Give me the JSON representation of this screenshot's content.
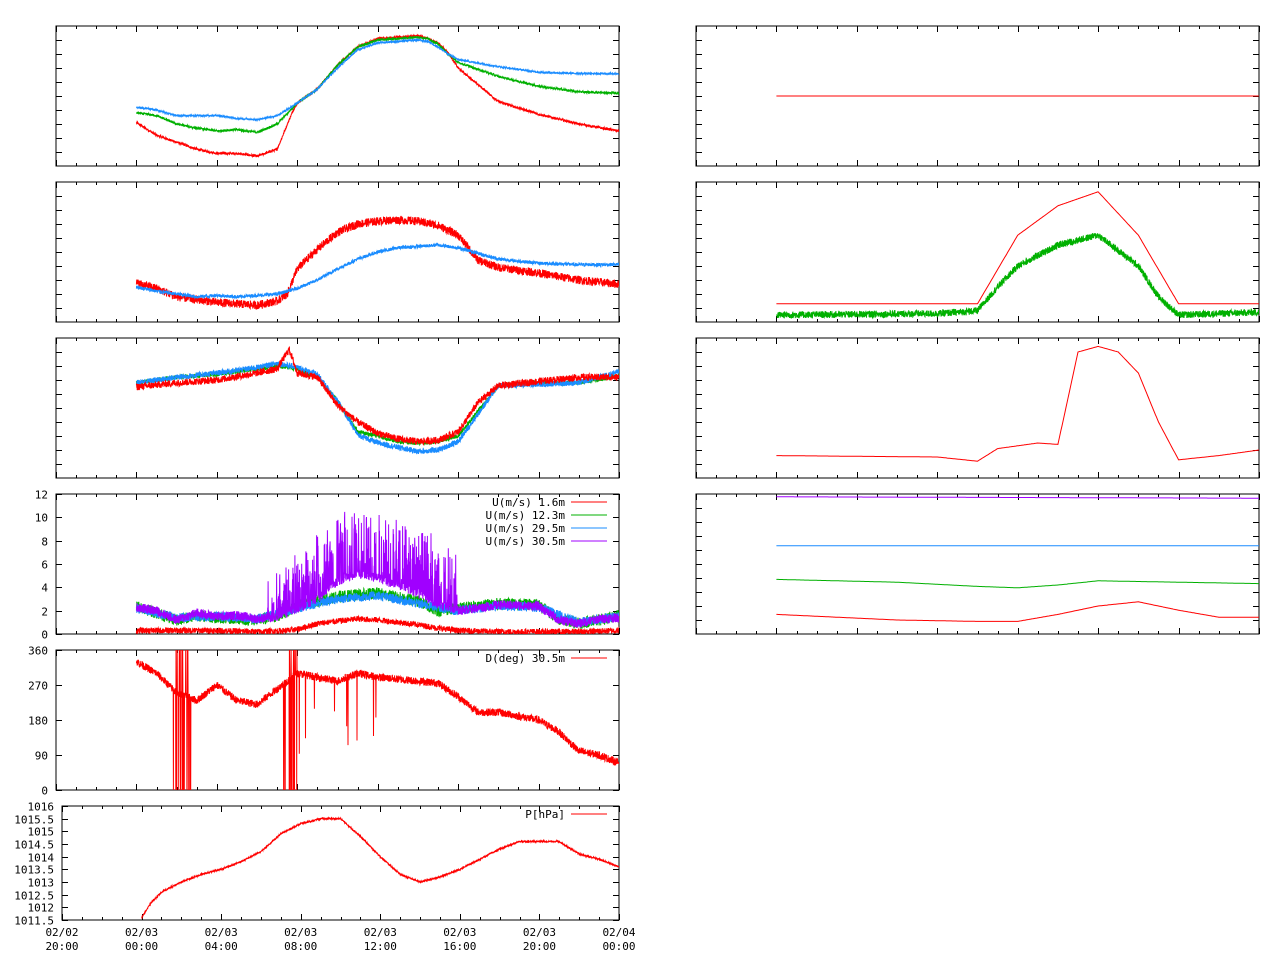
{
  "colors": {
    "red": "#ff0000",
    "green": "#00b000",
    "blue": "#1a8cff",
    "purple": "#a000ff",
    "frame": "#000000",
    "background": "#ffffff"
  },
  "x_axis": {
    "range_hours": [
      0,
      28
    ],
    "tick_hours": [
      0,
      4,
      8,
      12,
      16,
      20,
      24,
      28
    ],
    "tick_labels": [
      [
        "02/02",
        "20:00"
      ],
      [
        "02/03",
        "00:00"
      ],
      [
        "02/03",
        "04:00"
      ],
      [
        "02/03",
        "08:00"
      ],
      [
        "02/03",
        "12:00"
      ],
      [
        "02/03",
        "16:00"
      ],
      [
        "02/03",
        "20:00"
      ],
      [
        "02/04",
        "00:00"
      ]
    ],
    "data_start_hour": 4,
    "data_end_hour": 28
  },
  "chart_data": [
    {
      "id": "left-1",
      "type": "line",
      "ylim": [
        0,
        1
      ],
      "grid": false,
      "series": [
        {
          "color": "red",
          "noise": 0.008,
          "x": [
            4,
            5,
            6,
            7,
            8,
            9,
            10,
            11,
            11.8,
            12,
            13,
            14,
            15,
            16,
            17,
            18,
            18.5,
            19,
            19.5,
            20,
            22,
            24,
            26,
            28
          ],
          "y": [
            0.31,
            0.22,
            0.17,
            0.12,
            0.09,
            0.09,
            0.07,
            0.12,
            0.4,
            0.45,
            0.55,
            0.72,
            0.85,
            0.91,
            0.92,
            0.93,
            0.91,
            0.88,
            0.81,
            0.7,
            0.46,
            0.37,
            0.3,
            0.25
          ]
        },
        {
          "color": "green",
          "noise": 0.008,
          "x": [
            4,
            5,
            6,
            7,
            8,
            9,
            10,
            11,
            12,
            13,
            14,
            15,
            16,
            17,
            18,
            18.5,
            19,
            19.5,
            20,
            22,
            24,
            26,
            28
          ],
          "y": [
            0.38,
            0.36,
            0.3,
            0.27,
            0.25,
            0.26,
            0.24,
            0.3,
            0.45,
            0.55,
            0.72,
            0.85,
            0.9,
            0.91,
            0.92,
            0.91,
            0.87,
            0.8,
            0.74,
            0.64,
            0.57,
            0.53,
            0.52
          ]
        },
        {
          "color": "blue",
          "noise": 0.006,
          "x": [
            4,
            5,
            6,
            7,
            8,
            9,
            10,
            11,
            12,
            13,
            14,
            15,
            16,
            17,
            18,
            18.5,
            19,
            19.5,
            20,
            22,
            24,
            26,
            28
          ],
          "y": [
            0.42,
            0.4,
            0.36,
            0.36,
            0.36,
            0.34,
            0.33,
            0.36,
            0.45,
            0.55,
            0.7,
            0.83,
            0.88,
            0.89,
            0.9,
            0.89,
            0.85,
            0.8,
            0.76,
            0.71,
            0.67,
            0.66,
            0.66
          ]
        }
      ]
    },
    {
      "id": "left-2",
      "type": "line",
      "ylim": [
        0,
        1
      ],
      "grid": false,
      "series": [
        {
          "color": "red",
          "noise": 0.03,
          "x": [
            4,
            5,
            6,
            7,
            8,
            9,
            10,
            11,
            11.5,
            12,
            13,
            14,
            15,
            16,
            17,
            18,
            19,
            20,
            21,
            22,
            24,
            26,
            28
          ],
          "y": [
            0.28,
            0.24,
            0.18,
            0.16,
            0.14,
            0.13,
            0.12,
            0.15,
            0.2,
            0.38,
            0.52,
            0.64,
            0.7,
            0.72,
            0.73,
            0.72,
            0.69,
            0.62,
            0.44,
            0.39,
            0.35,
            0.3,
            0.27
          ]
        },
        {
          "color": "blue",
          "noise": 0.012,
          "x": [
            4,
            5,
            6,
            7,
            8,
            9,
            10,
            11,
            12,
            13,
            14,
            15,
            16,
            17,
            18,
            19,
            20,
            21,
            22,
            24,
            26,
            28
          ],
          "y": [
            0.25,
            0.22,
            0.2,
            0.18,
            0.19,
            0.18,
            0.19,
            0.2,
            0.24,
            0.3,
            0.38,
            0.45,
            0.5,
            0.53,
            0.54,
            0.55,
            0.53,
            0.49,
            0.45,
            0.42,
            0.41,
            0.41
          ]
        }
      ]
    },
    {
      "id": "left-3",
      "type": "line",
      "ylim": [
        0,
        1
      ],
      "grid": false,
      "series": [
        {
          "color": "green",
          "noise": 0.015,
          "x": [
            4,
            6,
            8,
            10,
            11,
            12,
            13,
            14,
            15,
            16,
            17,
            18,
            19,
            20,
            21,
            22,
            24,
            26,
            28
          ],
          "y": [
            0.68,
            0.72,
            0.74,
            0.78,
            0.8,
            0.78,
            0.72,
            0.55,
            0.33,
            0.3,
            0.26,
            0.25,
            0.26,
            0.3,
            0.48,
            0.66,
            0.68,
            0.68,
            0.73
          ]
        },
        {
          "color": "blue",
          "noise": 0.02,
          "x": [
            4,
            6,
            8,
            10,
            11,
            12,
            13,
            14,
            15,
            16,
            17,
            18,
            19,
            20,
            21,
            22,
            24,
            26,
            28
          ],
          "y": [
            0.68,
            0.72,
            0.75,
            0.79,
            0.82,
            0.79,
            0.74,
            0.55,
            0.31,
            0.25,
            0.22,
            0.19,
            0.2,
            0.26,
            0.46,
            0.66,
            0.67,
            0.68,
            0.76
          ]
        },
        {
          "color": "red",
          "noise": 0.025,
          "x": [
            4,
            6,
            8,
            10,
            11,
            11.6,
            12,
            13,
            14,
            15,
            16,
            17,
            18,
            19,
            20,
            21,
            22,
            24,
            26,
            28
          ],
          "y": [
            0.65,
            0.68,
            0.7,
            0.75,
            0.78,
            0.92,
            0.75,
            0.72,
            0.52,
            0.4,
            0.32,
            0.28,
            0.26,
            0.27,
            0.33,
            0.54,
            0.66,
            0.69,
            0.72,
            0.72
          ]
        }
      ]
    },
    {
      "id": "wind-speed",
      "type": "line",
      "ylim": [
        0,
        12
      ],
      "yticks": [
        0,
        2,
        4,
        6,
        8,
        10,
        12
      ],
      "grid": false,
      "legend": "top-right",
      "series": [
        {
          "name": "U(m/s)  1.6m",
          "color": "red",
          "noise": 0.25,
          "spiky": false,
          "x": [
            4,
            8,
            10,
            11.5,
            12,
            13,
            14,
            15,
            16,
            17,
            18,
            19,
            20,
            22,
            24,
            26,
            28
          ],
          "y": [
            0.3,
            0.3,
            0.2,
            0.3,
            0.4,
            0.9,
            1.1,
            1.3,
            1.2,
            1.0,
            0.8,
            0.5,
            0.3,
            0.2,
            0.2,
            0.2,
            0.3
          ]
        },
        {
          "name": "U(m/s) 12.3m",
          "color": "green",
          "noise": 0.5,
          "spiky": false,
          "x": [
            4,
            5,
            6,
            7,
            8,
            9,
            10,
            11,
            12,
            14,
            16,
            18,
            19,
            20,
            22,
            24,
            25,
            26,
            27,
            28
          ],
          "y": [
            2.4,
            1.8,
            1.2,
            1.6,
            1.4,
            1.3,
            1.2,
            1.5,
            2.4,
            3.2,
            3.5,
            2.8,
            2.0,
            2.2,
            2.6,
            2.5,
            1.3,
            0.9,
            1.2,
            1.6
          ]
        },
        {
          "name": "U(m/s) 29.5m",
          "color": "blue",
          "noise": 0.4,
          "spiky": false,
          "x": [
            4,
            6,
            8,
            10,
            12,
            14,
            16,
            18,
            20,
            22,
            24,
            26,
            28
          ],
          "y": [
            2.2,
            1.4,
            1.5,
            1.3,
            2.2,
            3.0,
            3.3,
            2.6,
            2.0,
            2.4,
            2.3,
            1.0,
            1.5
          ]
        },
        {
          "name": "U(m/s) 30.5m",
          "color": "purple",
          "noise": 0.4,
          "spiky": true,
          "x": [
            4,
            5,
            6,
            7,
            8,
            9,
            10,
            11,
            12,
            13,
            14,
            15,
            16,
            17,
            18,
            19,
            20,
            22,
            24,
            25,
            26,
            27,
            28
          ],
          "y": [
            2.3,
            2.0,
            1.2,
            1.8,
            1.5,
            1.6,
            1.3,
            1.5,
            2.2,
            3.0,
            4.5,
            5.2,
            4.8,
            4.2,
            3.5,
            2.5,
            2.0,
            2.5,
            2.4,
            1.2,
            0.9,
            1.3,
            1.4
          ]
        }
      ]
    },
    {
      "id": "wind-direction",
      "type": "line",
      "ylim": [
        0,
        360
      ],
      "yticks": [
        0,
        90,
        180,
        270,
        360
      ],
      "grid": false,
      "legend": "top-right",
      "series": [
        {
          "name": "D(deg)  30.5m",
          "color": "red",
          "noise": 10,
          "x": [
            4,
            5,
            6,
            7,
            8,
            9,
            10,
            11,
            12,
            13,
            14,
            15,
            16,
            17,
            18,
            19,
            20,
            21,
            22,
            23,
            24,
            25,
            26,
            27,
            28
          ],
          "y": [
            330,
            300,
            250,
            230,
            270,
            230,
            220,
            260,
            300,
            290,
            280,
            300,
            290,
            285,
            280,
            275,
            240,
            200,
            200,
            190,
            180,
            150,
            100,
            90,
            70
          ]
        }
      ]
    },
    {
      "id": "pressure",
      "type": "line",
      "ylim": [
        1011.5,
        1016
      ],
      "yticks": [
        1011.5,
        1012,
        1012.5,
        1013,
        1013.5,
        1014,
        1014.5,
        1015,
        1015.5,
        1016
      ],
      "ytick_labels": [
        "1011.5",
        "1012",
        "1012.5",
        "1013",
        "1013.5",
        "1014",
        "1014.5",
        "1015",
        "1015.5",
        "1016"
      ],
      "grid": false,
      "legend": "top-right",
      "series": [
        {
          "name": "P[hPa]",
          "color": "red",
          "noise": 0.03,
          "x": [
            4,
            4.5,
            5,
            6,
            7,
            8,
            9,
            10,
            11,
            12,
            13,
            14,
            15,
            16,
            17,
            18,
            19,
            20,
            21,
            22,
            23,
            24,
            25,
            26,
            27,
            28
          ],
          "y": [
            1011.6,
            1012.2,
            1012.6,
            1013.0,
            1013.3,
            1013.5,
            1013.8,
            1014.2,
            1014.9,
            1015.3,
            1015.5,
            1015.5,
            1014.8,
            1014.0,
            1013.3,
            1013.0,
            1013.2,
            1013.5,
            1013.9,
            1014.3,
            1014.6,
            1014.6,
            1014.6,
            1014.1,
            1013.9,
            1013.6
          ]
        }
      ]
    },
    {
      "id": "right-1",
      "type": "line",
      "ylim": [
        0,
        1
      ],
      "grid": false,
      "series": [
        {
          "color": "red",
          "noise": 0,
          "x": [
            4,
            28
          ],
          "y": [
            0.5,
            0.5
          ]
        }
      ]
    },
    {
      "id": "right-2",
      "type": "line",
      "ylim": [
        0,
        1
      ],
      "grid": false,
      "series": [
        {
          "color": "red",
          "noise": 0,
          "x": [
            4,
            12,
            14,
            16,
            18,
            20,
            22,
            24,
            28
          ],
          "y": [
            0.13,
            0.13,
            0.13,
            0.62,
            0.83,
            0.93,
            0.62,
            0.13,
            0.13
          ]
        },
        {
          "color": "green",
          "noise": 0.025,
          "x": [
            4,
            12,
            14,
            15,
            16,
            18,
            20,
            22,
            23,
            24,
            28
          ],
          "y": [
            0.05,
            0.06,
            0.08,
            0.25,
            0.4,
            0.55,
            0.62,
            0.4,
            0.18,
            0.05,
            0.07
          ]
        }
      ]
    },
    {
      "id": "right-3",
      "type": "line",
      "ylim": [
        0,
        1
      ],
      "grid": false,
      "series": [
        {
          "color": "red",
          "noise": 0,
          "x": [
            4,
            12,
            14,
            15,
            16,
            17,
            18,
            19,
            20,
            21,
            22,
            23,
            24,
            26,
            28
          ],
          "y": [
            0.16,
            0.15,
            0.12,
            0.21,
            0.23,
            0.25,
            0.24,
            0.9,
            0.94,
            0.9,
            0.75,
            0.4,
            0.13,
            0.16,
            0.2
          ]
        }
      ]
    },
    {
      "id": "right-4",
      "type": "line",
      "ylim": [
        0,
        1
      ],
      "grid": false,
      "series": [
        {
          "color": "purple",
          "noise": 0,
          "x": [
            4,
            28
          ],
          "y": [
            0.98,
            0.97
          ]
        },
        {
          "color": "blue",
          "noise": 0,
          "x": [
            4,
            28
          ],
          "y": [
            0.63,
            0.63
          ]
        },
        {
          "color": "green",
          "noise": 0,
          "x": [
            4,
            10,
            14,
            16,
            18,
            20,
            24,
            28
          ],
          "y": [
            0.39,
            0.37,
            0.34,
            0.33,
            0.35,
            0.38,
            0.37,
            0.36
          ]
        },
        {
          "color": "red",
          "noise": 0,
          "x": [
            4,
            10,
            14,
            16,
            18,
            20,
            22,
            24,
            26,
            28
          ],
          "y": [
            0.14,
            0.1,
            0.09,
            0.09,
            0.14,
            0.2,
            0.23,
            0.17,
            0.12,
            0.12
          ]
        }
      ]
    }
  ]
}
